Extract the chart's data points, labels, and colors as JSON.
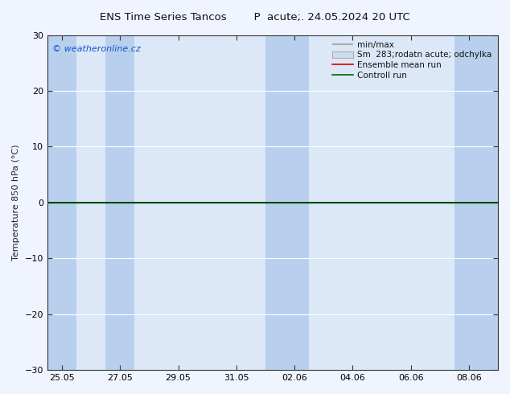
{
  "title": "ENS Time Series Tancos        P  acute;. 24.05.2024 20 UTC",
  "xlabel_ticks": [
    "25.05",
    "27.05",
    "29.05",
    "31.05",
    "02.06",
    "04.06",
    "06.06",
    "08.06"
  ],
  "ylabel": "Temperature 850 hPa (°C)",
  "ylim": [
    -30,
    30
  ],
  "yticks": [
    -30,
    -20,
    -10,
    0,
    10,
    20,
    30
  ],
  "background_color": "#f0f4ff",
  "plot_bg_color": "#dce8f8",
  "stripe_color": "#b8d0ee",
  "grid_color": "#ffffff",
  "watermark": "© weatheronline.cz",
  "legend_entries": [
    "min/max",
    "Sm  283;rodatn acute; odchylka",
    "Ensemble mean run",
    "Controll run"
  ],
  "zero_line_color": "#000000",
  "ensemble_mean_color": "#dd0000",
  "control_run_color": "#006600",
  "minmax_line_color": "#aaaaaa",
  "spread_line_color": "#bbbbbb"
}
